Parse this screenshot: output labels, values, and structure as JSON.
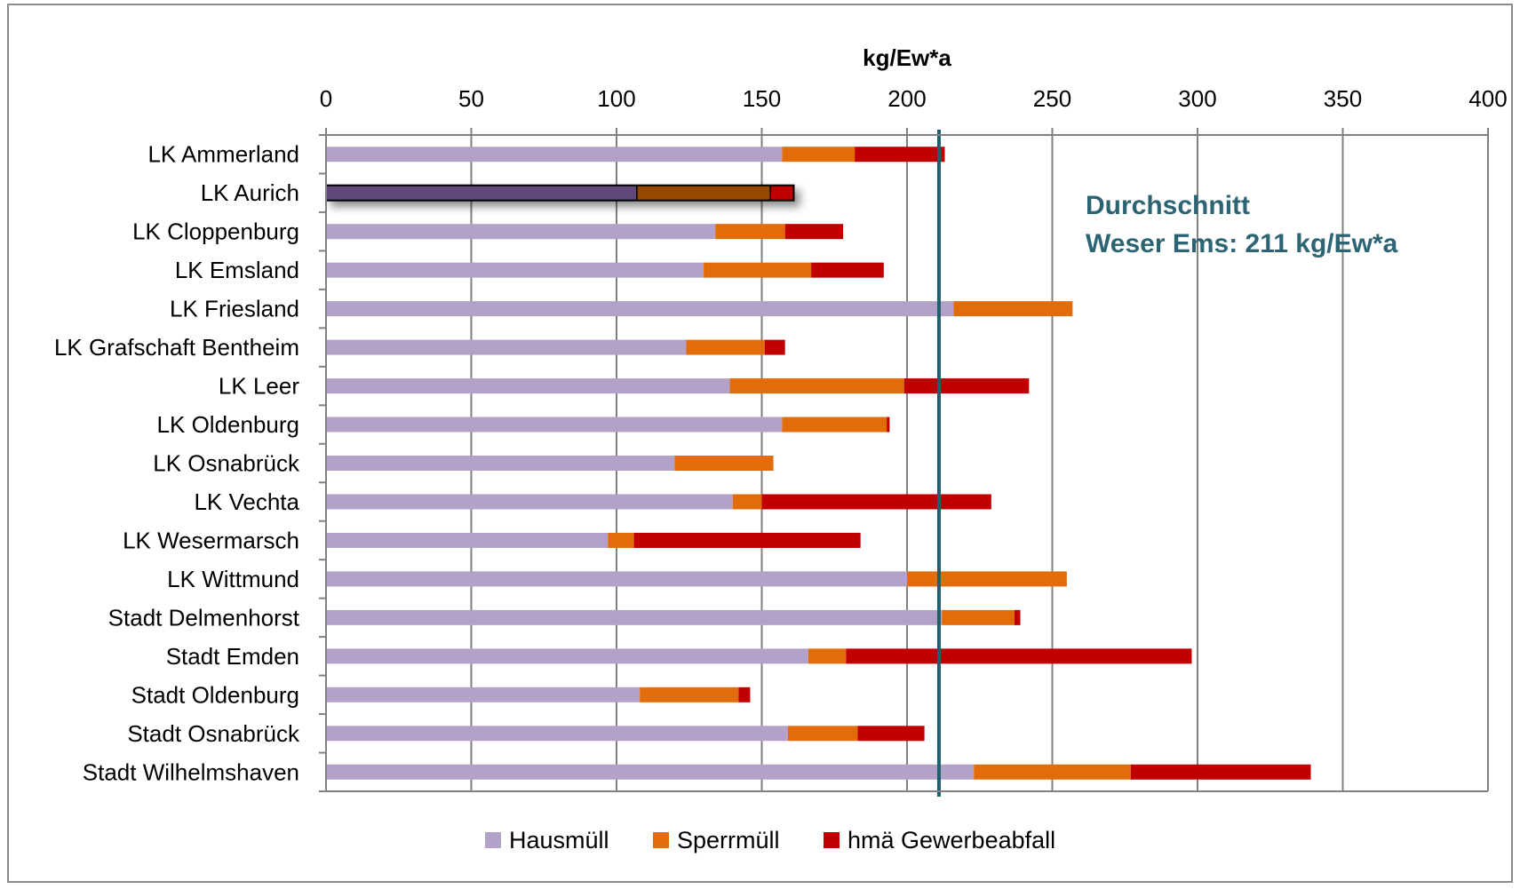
{
  "colors": {
    "hausmuell": "#b3a2c7",
    "sperrmuell": "#e36c0a",
    "gewerbe": "#c00000",
    "hausmuell_highlight": "#60497a",
    "sperrmuell_highlight": "#974706",
    "gewerbe_highlight": "#c00000",
    "average_line": "#1f5f6b",
    "annotation_text": "#2c6474",
    "grid": "#808080"
  },
  "annotation": {
    "line1": "Durchschnitt",
    "line2": "Weser Ems:  211 kg/Ew*a"
  },
  "chart_data": {
    "type": "bar",
    "orientation": "horizontal",
    "stacked": true,
    "xlabel": "kg/Ew*a",
    "xlim": [
      0,
      400
    ],
    "x_ticks": [
      "0",
      "50",
      "100",
      "150",
      "200",
      "250",
      "300",
      "350",
      "400"
    ],
    "x_tick_values": [
      0,
      50,
      100,
      150,
      200,
      250,
      300,
      350,
      400
    ],
    "grid": true,
    "legend_position": "bottom",
    "average_line_value": 211,
    "highlighted_category": "LK Aurich",
    "categories": [
      "LK Ammerland",
      "LK Aurich",
      "LK Cloppenburg",
      "LK Emsland",
      "LK Friesland",
      "LK Grafschaft Bentheim",
      "LK Leer",
      "LK Oldenburg",
      "LK Osnabrück",
      "LK Vechta",
      "LK Wesermarsch",
      "LK Wittmund",
      "Stadt Delmenhorst",
      "Stadt Emden",
      "Stadt Oldenburg",
      "Stadt Osnabrück",
      "Stadt Wilhelmshaven"
    ],
    "series": [
      {
        "name": "Hausmüll",
        "values": [
          157,
          107,
          134,
          130,
          216,
          124,
          139,
          157,
          120,
          140,
          97,
          200,
          212,
          166,
          108,
          159,
          223
        ]
      },
      {
        "name": "Sperrmüll",
        "values": [
          25,
          46,
          24,
          37,
          41,
          27,
          60,
          36,
          34,
          10,
          9,
          55,
          25,
          13,
          34,
          24,
          54
        ]
      },
      {
        "name": "hmä Gewerbeabfall",
        "values": [
          31,
          8,
          20,
          25,
          0,
          7,
          43,
          1,
          0,
          79,
          78,
          0,
          2,
          119,
          4,
          23,
          62
        ]
      }
    ]
  }
}
